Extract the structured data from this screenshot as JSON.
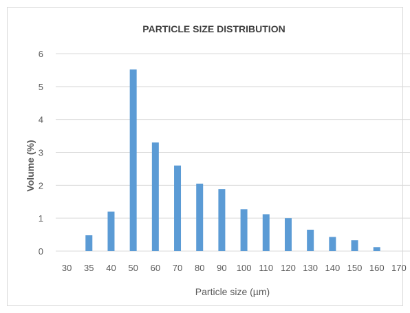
{
  "chart_data": {
    "type": "bar",
    "title": "PARTICLE SIZE DISTRIBUTION",
    "xlabel": "Particle size (µm)",
    "ylabel": "Volume (%)",
    "categories": [
      "30",
      "35",
      "40",
      "50",
      "60",
      "70",
      "80",
      "90",
      "100",
      "110",
      "120",
      "130",
      "140",
      "150",
      "160",
      "170"
    ],
    "values": [
      0,
      0.48,
      1.2,
      5.52,
      3.3,
      2.6,
      2.05,
      1.88,
      1.27,
      1.12,
      1.0,
      0.65,
      0.43,
      0.33,
      0.12,
      0
    ],
    "ylim": [
      0,
      6
    ],
    "yticks": [
      0,
      1,
      2,
      3,
      4,
      5,
      6
    ],
    "grid": true,
    "legend": "none",
    "bar_color": "#5b9bd5"
  }
}
